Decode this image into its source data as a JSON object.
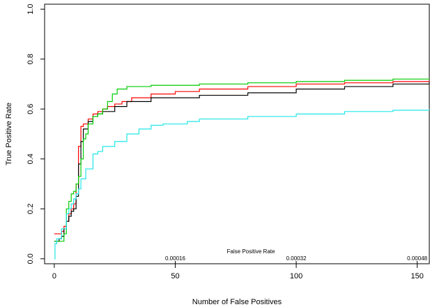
{
  "chart_data": {
    "type": "line",
    "title": "",
    "xlabel": "Number of False Positives",
    "ylabel": "True Positive Rate",
    "xlim": [
      -4,
      155
    ],
    "ylim": [
      -0.02,
      1.02
    ],
    "x_ticks": [
      {
        "value": 0,
        "label": "0"
      },
      {
        "value": 50,
        "label": "50"
      },
      {
        "value": 100,
        "label": "100"
      },
      {
        "value": 150,
        "label": "150"
      }
    ],
    "y_ticks": [
      {
        "value": 0.0,
        "label": "0.0"
      },
      {
        "value": 0.2,
        "label": "0.2"
      },
      {
        "value": 0.4,
        "label": "0.4"
      },
      {
        "value": 0.6,
        "label": "0.6"
      },
      {
        "value": 0.8,
        "label": "0.8"
      },
      {
        "value": 1.0,
        "label": "1.0"
      }
    ],
    "secondary_axis": {
      "label": "False Positive Rate",
      "ticks": [
        {
          "value": 50,
          "label": "0.00016"
        },
        {
          "value": 100,
          "label": "0.00032"
        },
        {
          "value": 150,
          "label": "0.00048"
        }
      ]
    },
    "grid": false,
    "legend": "none",
    "series": [
      {
        "color": "#ff0000",
        "x": [
          0,
          3,
          4,
          5,
          6,
          7,
          8,
          9,
          10,
          11,
          12,
          14,
          16,
          18,
          20,
          22,
          25,
          28,
          32,
          40,
          50,
          60,
          80,
          100,
          120,
          140,
          155
        ],
        "y": [
          0.1,
          0.11,
          0.13,
          0.15,
          0.18,
          0.2,
          0.22,
          0.3,
          0.45,
          0.53,
          0.54,
          0.56,
          0.58,
          0.59,
          0.6,
          0.61,
          0.62,
          0.63,
          0.645,
          0.66,
          0.67,
          0.68,
          0.69,
          0.7,
          0.705,
          0.71,
          0.72
        ]
      },
      {
        "color": "#000000",
        "x": [
          0,
          2,
          3,
          4,
          5,
          6,
          7,
          8,
          9,
          10,
          11,
          12,
          14,
          16,
          18,
          20,
          25,
          30,
          40,
          60,
          80,
          100,
          120,
          140,
          155
        ],
        "y": [
          0.07,
          0.08,
          0.09,
          0.12,
          0.15,
          0.17,
          0.19,
          0.2,
          0.25,
          0.38,
          0.47,
          0.52,
          0.55,
          0.57,
          0.58,
          0.59,
          0.61,
          0.63,
          0.645,
          0.655,
          0.665,
          0.68,
          0.69,
          0.7,
          0.71
        ]
      },
      {
        "color": "#00cc00",
        "x": [
          0,
          2,
          4,
          5,
          6,
          7,
          8,
          9,
          10,
          11,
          12,
          13,
          14,
          16,
          18,
          20,
          22,
          24,
          26,
          30,
          40,
          60,
          80,
          100,
          120,
          140,
          155
        ],
        "y": [
          0.07,
          0.07,
          0.1,
          0.2,
          0.23,
          0.26,
          0.27,
          0.3,
          0.33,
          0.4,
          0.48,
          0.5,
          0.54,
          0.57,
          0.58,
          0.6,
          0.63,
          0.66,
          0.68,
          0.69,
          0.695,
          0.7,
          0.705,
          0.71,
          0.715,
          0.72,
          0.725
        ]
      },
      {
        "color": "#22e6e6",
        "x": [
          0,
          0.3,
          1,
          3,
          5,
          6,
          7,
          8,
          9,
          10,
          11,
          13,
          16,
          18,
          20,
          25,
          30,
          35,
          40,
          45,
          55,
          60,
          80,
          100,
          120,
          140,
          155
        ],
        "y": [
          0.0,
          0.06,
          0.08,
          0.12,
          0.18,
          0.2,
          0.22,
          0.24,
          0.26,
          0.28,
          0.32,
          0.36,
          0.42,
          0.43,
          0.45,
          0.47,
          0.5,
          0.52,
          0.535,
          0.54,
          0.55,
          0.56,
          0.57,
          0.58,
          0.59,
          0.595,
          0.6
        ]
      }
    ]
  }
}
